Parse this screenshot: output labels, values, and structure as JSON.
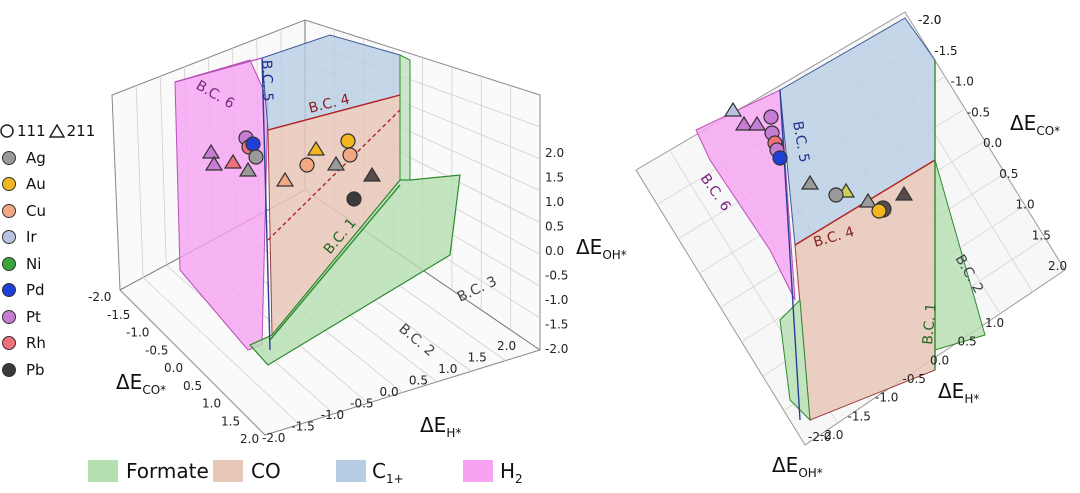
{
  "chart_data": [
    {
      "type": "scatter",
      "variant": "3d-descriptor-space",
      "axes": {
        "x": {
          "label": "ΔE_CO*",
          "ticks": [
            "-2.0",
            "-1.5",
            "-1.0",
            "-0.5",
            "0.0",
            "0.5",
            "1.0",
            "1.5",
            "2.0"
          ],
          "range": [
            -2.0,
            2.0
          ]
        },
        "y": {
          "label": "ΔE_H*",
          "ticks": [
            "-2.0",
            "-1.5",
            "-1.0",
            "-0.5",
            "0.0",
            "0.5",
            "1.0",
            "1.5",
            "2.0"
          ],
          "range": [
            -2.0,
            2.0
          ]
        },
        "z": {
          "label": "ΔE_OH*",
          "ticks": [
            "2.0",
            "1.5",
            "1.0",
            "0.5",
            "0.0",
            "-0.5",
            "-1.0",
            "-1.5",
            "-2.0"
          ],
          "range": [
            -2.0,
            2.0
          ]
        }
      },
      "boundary_labels": [
        "B.C. 1",
        "B.C. 2",
        "B.C. 3",
        "B.C. 4",
        "B.C. 5",
        "B.C. 6"
      ],
      "grid": true
    },
    {
      "type": "scatter",
      "variant": "3d-descriptor-space-rotated",
      "axes": {
        "x": {
          "label": "ΔE_CO*",
          "ticks": [
            "-2.0",
            "-1.5",
            "-1.0",
            "-0.5",
            "0.0",
            "0.5",
            "1.0",
            "1.5",
            "2.0"
          ],
          "range": [
            -2.0,
            2.0
          ]
        },
        "y": {
          "label": "ΔE_H*",
          "ticks": [
            "1.0",
            "0.5",
            "0.0",
            "-0.5",
            "-1.0",
            "-1.5",
            "-2.0"
          ],
          "range": [
            -2.0,
            1.0
          ]
        },
        "z": {
          "label": "ΔE_OH*",
          "ticks": [
            "-2.0"
          ],
          "range": [
            -2.0,
            2.0
          ]
        }
      },
      "boundary_labels": [
        "B.C. 1",
        "B.C. 2",
        "B.C. 4",
        "B.C. 5",
        "B.C. 6"
      ],
      "grid": true
    }
  ],
  "legend": {
    "facet_header": {
      "circle_label": "111",
      "triangle_label": "211"
    },
    "metals": [
      {
        "name": "Ag",
        "color": "#9a9a9a"
      },
      {
        "name": "Au",
        "color": "#f3b61f"
      },
      {
        "name": "Cu",
        "color": "#f2a882"
      },
      {
        "name": "Ir",
        "color": "#b9c3e0"
      },
      {
        "name": "Ni",
        "color": "#3aa63a"
      },
      {
        "name": "Pd",
        "color": "#1e40d8"
      },
      {
        "name": "Pt",
        "color": "#c77dd3"
      },
      {
        "name": "Rh",
        "color": "#ef6f7a"
      },
      {
        "name": "Pb",
        "color": "#3a3a3a"
      }
    ]
  },
  "regions": [
    {
      "label": "Formate",
      "color": "#b4dfb0"
    },
    {
      "label": "CO",
      "color": "#e7c7b8"
    },
    {
      "label": "C",
      "sub": "1+",
      "color": "#b6cde3"
    },
    {
      "label": "H",
      "sub": "2",
      "color": "#f6a3f2"
    }
  ],
  "axis_titles": {
    "co": {
      "main": "ΔE",
      "sub": "CO*"
    },
    "h": {
      "main": "ΔE",
      "sub": "H*"
    },
    "oh": {
      "main": "ΔE",
      "sub": "OH*"
    }
  }
}
